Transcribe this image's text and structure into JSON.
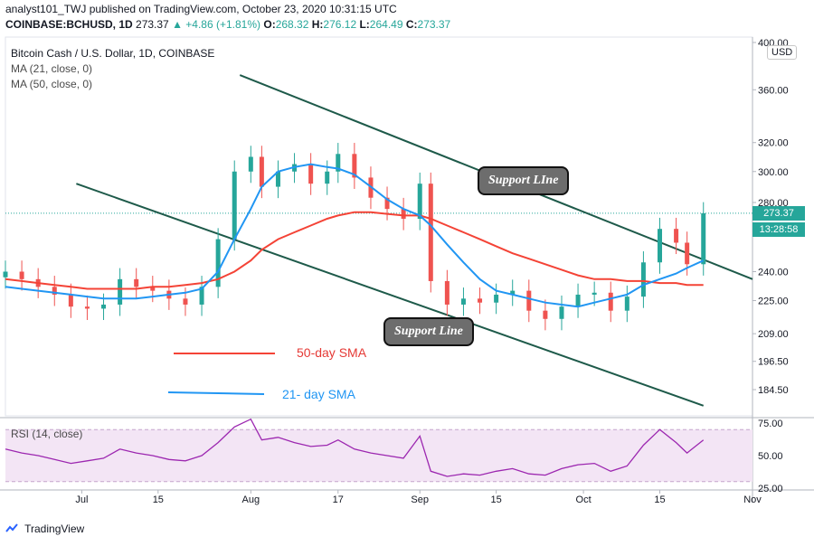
{
  "header": {
    "published_line": "analyst101_TWJ published on TradingView.com, October 23, 2020 10:31:15 UTC",
    "symbol": "COINBASE:BCHUSD, 1D",
    "last": "273.37",
    "change": "▲ +4.86 (+1.81%)",
    "o_label": "O:",
    "o": "268.32",
    "h_label": "H:",
    "h": "276.12",
    "l_label": "L:",
    "l": "264.49",
    "c_label": "C:",
    "c": "273.37"
  },
  "legend": {
    "title": "Bitcoin Cash / U.S. Dollar, 1D, COINBASE",
    "ma21": "MA (21, close, 0)",
    "ma50": "MA (50, close, 0)",
    "rsi": "RSI (14, close)"
  },
  "annotations": {
    "support_upper": "Support LIne",
    "support_lower": "Support Line",
    "sma50": "50-day SMA",
    "sma21": "21- day SMA"
  },
  "axis": {
    "currency": "USD",
    "price_ticks": [
      "400.00",
      "360.00",
      "320.00",
      "300.00",
      "280.00",
      "240.00",
      "225.00",
      "209.00",
      "196.50",
      "184.50"
    ],
    "rsi_ticks": [
      "75.00",
      "50.00",
      "25.00"
    ],
    "x_ticks": [
      "Jul",
      "15",
      "Aug",
      "17",
      "Sep",
      "15",
      "Oct",
      "15",
      "Nov"
    ],
    "current_price": "273.37",
    "countdown": "13:28:58"
  },
  "colors": {
    "up": "#26a69a",
    "down": "#ef5350",
    "ma21": "#2196f3",
    "ma50": "#f44336",
    "trendline": "#1e5a4a",
    "rsi_line": "#9c27b0",
    "rsi_band": "#f3e5f5"
  },
  "footer": {
    "brand": "TradingView"
  },
  "chart_data": {
    "type": "candlestick",
    "title": "Bitcoin Cash / U.S. Dollar, 1D, COINBASE",
    "x_range": [
      "2020-06-17",
      "2020-11-01"
    ],
    "y_scale": "log",
    "ylim": [
      175,
      405
    ],
    "last_price": 273.37,
    "series_ohlc_note": "approximate daily closes read from chart",
    "closes": [
      {
        "date": "2020-06-17",
        "close": 240
      },
      {
        "date": "2020-06-20",
        "close": 236
      },
      {
        "date": "2020-06-23",
        "close": 232
      },
      {
        "date": "2020-06-26",
        "close": 228
      },
      {
        "date": "2020-06-29",
        "close": 222
      },
      {
        "date": "2020-07-02",
        "close": 221
      },
      {
        "date": "2020-07-05",
        "close": 223
      },
      {
        "date": "2020-07-08",
        "close": 236
      },
      {
        "date": "2020-07-11",
        "close": 232
      },
      {
        "date": "2020-07-14",
        "close": 230
      },
      {
        "date": "2020-07-17",
        "close": 226
      },
      {
        "date": "2020-07-20",
        "close": 223
      },
      {
        "date": "2020-07-23",
        "close": 232
      },
      {
        "date": "2020-07-26",
        "close": 258
      },
      {
        "date": "2020-07-29",
        "close": 300
      },
      {
        "date": "2020-08-01",
        "close": 310
      },
      {
        "date": "2020-08-03",
        "close": 290
      },
      {
        "date": "2020-08-06",
        "close": 300
      },
      {
        "date": "2020-08-09",
        "close": 305
      },
      {
        "date": "2020-08-12",
        "close": 292
      },
      {
        "date": "2020-08-15",
        "close": 300
      },
      {
        "date": "2020-08-17",
        "close": 312
      },
      {
        "date": "2020-08-20",
        "close": 296
      },
      {
        "date": "2020-08-23",
        "close": 283
      },
      {
        "date": "2020-08-26",
        "close": 276
      },
      {
        "date": "2020-08-29",
        "close": 270
      },
      {
        "date": "2020-09-01",
        "close": 292
      },
      {
        "date": "2020-09-03",
        "close": 235
      },
      {
        "date": "2020-09-06",
        "close": 223
      },
      {
        "date": "2020-09-09",
        "close": 226
      },
      {
        "date": "2020-09-12",
        "close": 224
      },
      {
        "date": "2020-09-15",
        "close": 228
      },
      {
        "date": "2020-09-18",
        "close": 230
      },
      {
        "date": "2020-09-21",
        "close": 220
      },
      {
        "date": "2020-09-24",
        "close": 216
      },
      {
        "date": "2020-09-27",
        "close": 222
      },
      {
        "date": "2020-09-30",
        "close": 228
      },
      {
        "date": "2020-10-03",
        "close": 229
      },
      {
        "date": "2020-10-06",
        "close": 220
      },
      {
        "date": "2020-10-09",
        "close": 227
      },
      {
        "date": "2020-10-12",
        "close": 245
      },
      {
        "date": "2020-10-15",
        "close": 264
      },
      {
        "date": "2020-10-18",
        "close": 256
      },
      {
        "date": "2020-10-20",
        "close": 244
      },
      {
        "date": "2020-10-23",
        "close": 273.37
      }
    ],
    "ma21_values": [
      232,
      231,
      230,
      229,
      228,
      227,
      226,
      226,
      226,
      227,
      228,
      229,
      231,
      240,
      258,
      276,
      290,
      300,
      303,
      305,
      303,
      302,
      298,
      290,
      282,
      276,
      272,
      266,
      255,
      245,
      236,
      230,
      228,
      226,
      224,
      223,
      222,
      224,
      226,
      228,
      233,
      236,
      239,
      242,
      246
    ],
    "ma50_values": [
      236,
      235,
      234,
      233,
      232,
      231,
      231,
      231,
      231,
      232,
      232,
      233,
      234,
      236,
      240,
      246,
      252,
      258,
      262,
      266,
      270,
      272,
      274,
      274,
      273,
      272,
      272,
      270,
      266,
      262,
      258,
      254,
      250,
      247,
      244,
      241,
      238,
      236,
      236,
      235,
      235,
      234,
      234,
      233,
      233
    ],
    "rsi_values": [
      55,
      52,
      50,
      47,
      44,
      46,
      48,
      55,
      52,
      50,
      47,
      46,
      50,
      60,
      72,
      78,
      62,
      64,
      60,
      57,
      58,
      62,
      55,
      52,
      50,
      48,
      65,
      38,
      34,
      36,
      35,
      38,
      40,
      36,
      35,
      40,
      43,
      44,
      38,
      42,
      58,
      70,
      60,
      52,
      62
    ],
    "rsi_range": [
      25,
      75
    ],
    "rsi_bands": [
      30,
      70
    ]
  }
}
